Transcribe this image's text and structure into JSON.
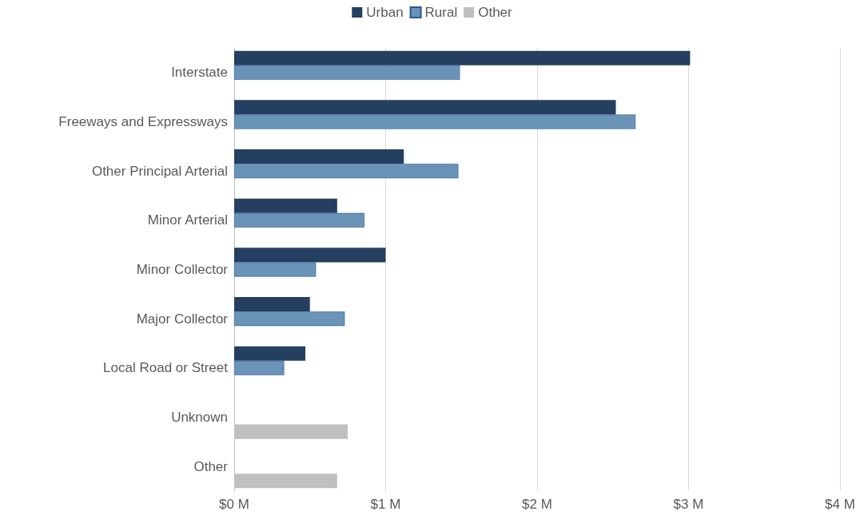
{
  "chart_data": {
    "type": "bar",
    "orientation": "horizontal",
    "categories": [
      "Interstate",
      "Freeways and Expressways",
      "Other Principal Arterial",
      "Minor Arterial",
      "Minor Collector",
      "Major Collector",
      "Local Road or Street",
      "Unknown",
      "Other"
    ],
    "series": [
      {
        "name": "Urban",
        "color": "#243f60",
        "values": [
          3.01,
          2.52,
          1.12,
          0.68,
          1.0,
          0.5,
          0.47,
          null,
          null
        ]
      },
      {
        "name": "Rural",
        "color": "#6a93b8",
        "values": [
          1.49,
          2.65,
          1.48,
          0.86,
          0.54,
          0.73,
          0.33,
          null,
          null
        ]
      },
      {
        "name": "Other",
        "color": "#bfbfbf",
        "values": [
          null,
          null,
          null,
          null,
          null,
          null,
          null,
          0.75,
          0.68
        ]
      }
    ],
    "xlim": [
      0,
      4
    ],
    "xticks": [
      {
        "value": 0,
        "label": "$0 M"
      },
      {
        "value": 1,
        "label": "$1 M"
      },
      {
        "value": 2,
        "label": "$2 M"
      },
      {
        "value": 3,
        "label": "$3 M"
      },
      {
        "value": 4,
        "label": "$4 M"
      }
    ],
    "grid": "x",
    "legend": "top"
  }
}
